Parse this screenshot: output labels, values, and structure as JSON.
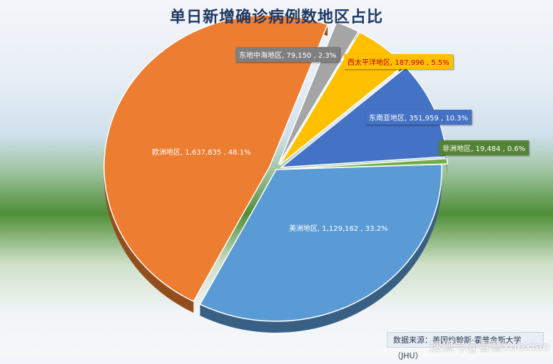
{
  "chart_data": {
    "type": "pie",
    "title": "单日新增确诊病例数地区占比",
    "slices": [
      {
        "name": "美洲地区",
        "value": 1129162,
        "percent": "33.2%",
        "color": "#5b9bd5",
        "label": "美洲地区, 1,129,162 , 33.2%"
      },
      {
        "name": "欧洲地区",
        "value": 1637835,
        "percent": "48.1%",
        "color": "#ed7d31",
        "label": "欧洲地区, 1,637,835 , 48.1%"
      },
      {
        "name": "东地中海地区",
        "value": 79150,
        "percent": "2.3%",
        "color": "#a5a5a5",
        "label": "东地中海地区, 79,150 , 2.3%"
      },
      {
        "name": "西太平洋地区",
        "value": 187996,
        "percent": "5.5%",
        "color": "#ffc000",
        "label": "西太平洋地区, 187,996 , 5.5%"
      },
      {
        "name": "东南亚地区",
        "value": 351959,
        "percent": "10.3%",
        "color": "#4472c4",
        "label": "东南亚地区, 351,959 , 10.3%"
      },
      {
        "name": "非洲地区",
        "value": 19484,
        "percent": "0.6%",
        "color": "#70ad47",
        "label": "非洲地区, 19,484 , 0.6%"
      }
    ]
  },
  "source_text": "数据来源：美国约翰斯·霍普金斯大学（JHU）",
  "watermark": "搜狐号@雪簪xuexiao"
}
